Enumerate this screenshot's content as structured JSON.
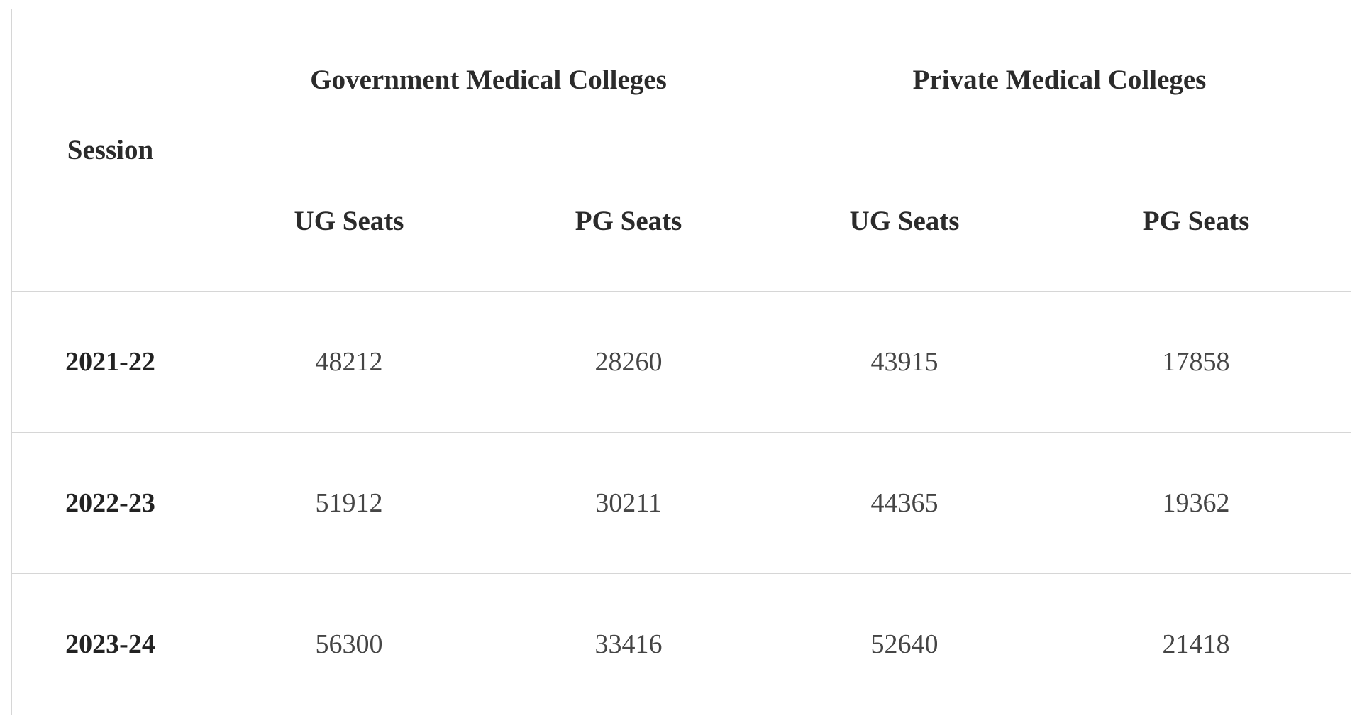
{
  "table": {
    "header": {
      "session": "Session",
      "groups": [
        "Government Medical Colleges",
        "Private Medical Colleges"
      ],
      "subheaders": [
        "UG Seats",
        "PG Seats",
        "UG Seats",
        "PG Seats"
      ]
    },
    "rows": [
      [
        "2021-22",
        48212,
        28260,
        43915,
        17858
      ],
      [
        "2022-23",
        51912,
        30211,
        44365,
        19362
      ],
      [
        "2023-24",
        56300,
        33416,
        52640,
        21418
      ]
    ]
  }
}
